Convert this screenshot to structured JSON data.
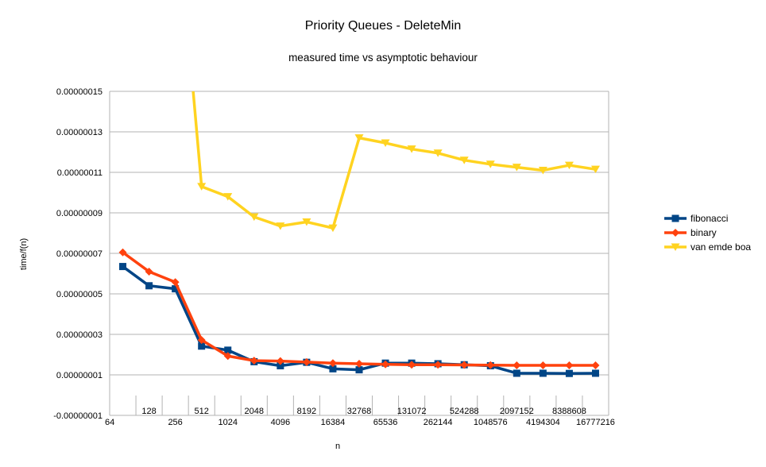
{
  "chart_data": {
    "type": "line",
    "title": "Priority Queues - DeleteMin",
    "subtitle": "measured time vs asymptotic behaviour",
    "xlabel": "n",
    "ylabel": "time/f(n)",
    "ylim": [
      -1e-08,
      1.5e-07
    ],
    "yticks": [
      "0.00000015",
      "0.00000013",
      "0.00000011",
      "0.00000009",
      "0.00000007",
      "0.00000005",
      "0.00000003",
      "0.00000001",
      "-0.00000001"
    ],
    "ytick_values": [
      1.5e-07,
      1.3e-07,
      1.1e-07,
      9e-08,
      7e-08,
      5e-08,
      3e-08,
      1e-08,
      -1e-08
    ],
    "categories": [
      "64",
      "128",
      "256",
      "512",
      "1024",
      "2048",
      "4096",
      "8192",
      "16384",
      "32768",
      "65536",
      "131072",
      "262144",
      "524288",
      "1048576",
      "2097152",
      "4194304",
      "8388608",
      "16777216"
    ],
    "grid": "horizontal",
    "legend": "right",
    "series": [
      {
        "name": "fibonacci",
        "color": "#004586",
        "marker": "square",
        "values": [
          6.35e-08,
          5.4e-08,
          5.25e-08,
          2.42e-08,
          2.22e-08,
          1.65e-08,
          1.45e-08,
          1.62e-08,
          1.3e-08,
          1.25e-08,
          1.58e-08,
          1.58e-08,
          1.55e-08,
          1.5e-08,
          1.45e-08,
          1.08e-08,
          1.08e-08,
          1.07e-08,
          1.08e-08
        ]
      },
      {
        "name": "binary",
        "color": "#ff420e",
        "marker": "diamond",
        "values": [
          7.05e-08,
          6.1e-08,
          5.58e-08,
          2.72e-08,
          1.93e-08,
          1.7e-08,
          1.68e-08,
          1.63e-08,
          1.58e-08,
          1.55e-08,
          1.52e-08,
          1.5e-08,
          1.5e-08,
          1.49e-08,
          1.48e-08,
          1.47e-08,
          1.47e-08,
          1.47e-08,
          1.47e-08
        ]
      },
      {
        "name": "van emde boa",
        "color": "#ffd320",
        "marker": "triangle-down",
        "values": [
          null,
          null,
          2.5e-07,
          1.03e-07,
          9.8e-08,
          8.8e-08,
          8.35e-08,
          8.55e-08,
          8.25e-08,
          1.27e-07,
          1.245e-07,
          1.215e-07,
          1.195e-07,
          1.16e-07,
          1.14e-07,
          1.125e-07,
          1.11e-07,
          1.135e-07,
          1.115e-07
        ]
      }
    ]
  }
}
